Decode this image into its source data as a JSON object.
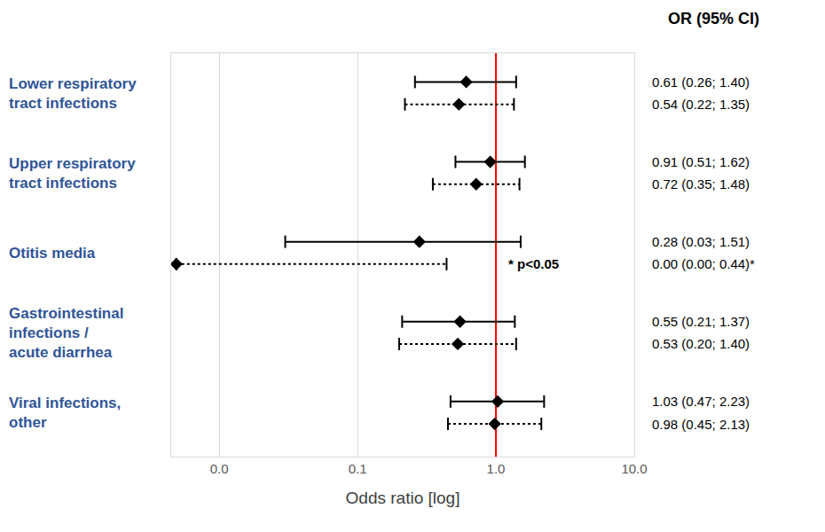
{
  "chart_data": {
    "type": "forest",
    "title": "OR (95% CI)",
    "x_label": "Odds ratio [log]",
    "categories": [
      "Lower respiratory\ntract infections",
      "Upper respiratory\ntract infections",
      "Otitis media",
      "Gastrointestinal\ninfections /\nacute diarrhea",
      "Viral infections,\nother"
    ],
    "series": [
      {
        "line_style": "solid",
        "color": "#000000",
        "marker": "diamond",
        "values": [
          0.61,
          0.91,
          0.28,
          0.55,
          1.03
        ],
        "ci_low": [
          0.26,
          0.51,
          0.03,
          0.21,
          0.47
        ],
        "ci_high": [
          1.4,
          1.62,
          1.51,
          1.37,
          2.23
        ],
        "value_labels": [
          "0.61 (0.26; 1.40)",
          "0.91 (0.51; 1.62)",
          "0.28 (0.03; 1.51)",
          "0.55 (0.21; 1.37)",
          "1.03 (0.47; 2.23)"
        ]
      },
      {
        "line_style": "dotted",
        "color": "#000000",
        "marker": "diamond",
        "values": [
          0.54,
          0.72,
          0.0049,
          0.53,
          0.98
        ],
        "ci_low": [
          0.22,
          0.35,
          0.0049,
          0.2,
          0.45
        ],
        "ci_high": [
          1.35,
          1.48,
          0.44,
          1.4,
          2.13
        ],
        "value_labels": [
          "0.54 (0.22; 1.35)",
          "0.72 (0.35; 1.48)",
          "0.00 (0.00; 0.44)*",
          "0.53 (0.20; 1.40)",
          "0.98 (0.45; 2.13)"
        ]
      }
    ],
    "reference_line": 1,
    "annotations": [
      "* p<0.05"
    ],
    "xlim": [
      0.0045,
      10
    ],
    "xticks": [
      {
        "value": 0.01,
        "label": "0.0"
      },
      {
        "value": 0.1,
        "label": "0.1"
      },
      {
        "value": 1,
        "label": "1.0"
      },
      {
        "value": 10,
        "label": "10.0"
      }
    ],
    "log": "x",
    "grid": true,
    "tick_labels": "x"
  }
}
